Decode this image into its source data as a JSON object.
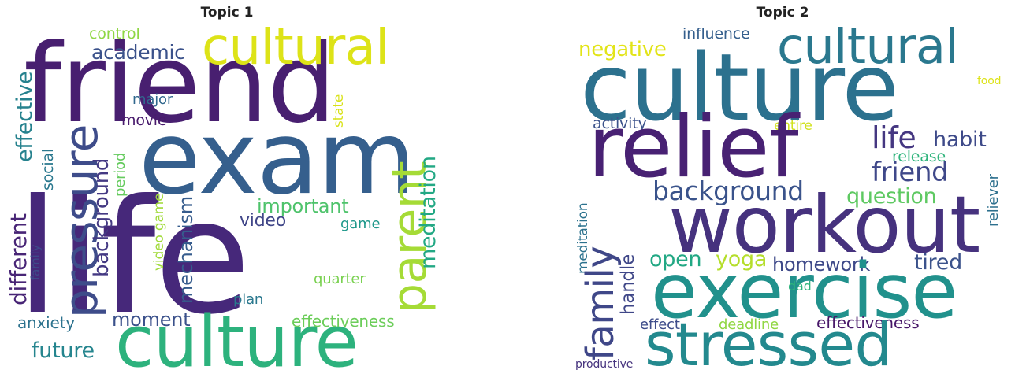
{
  "panels": [
    {
      "title": "Topic 1",
      "words": {
        "friend": {
          "text": "friend",
          "color": "#481f70"
        },
        "exam": {
          "text": "exam",
          "color": "#355f8d"
        },
        "life": {
          "text": "life",
          "color": "#46287a"
        },
        "culture": {
          "text": "culture",
          "color": "#2db27d"
        },
        "cultural": {
          "text": "cultural",
          "color": "#dde318"
        },
        "pressure": {
          "text": "pressure",
          "color": "#3e4c8a"
        },
        "parent": {
          "text": "parent",
          "color": "#a5db36"
        },
        "academic": {
          "text": "academic",
          "color": "#3b528b"
        },
        "control": {
          "text": "control",
          "color": "#8fd744"
        },
        "effective": {
          "text": "effective",
          "color": "#26828e"
        },
        "different": {
          "text": "different",
          "color": "#482576"
        },
        "background": {
          "text": "background",
          "color": "#443983"
        },
        "major": {
          "text": "major",
          "color": "#31688e"
        },
        "movie": {
          "text": "movie",
          "color": "#481a6c"
        },
        "state": {
          "text": "state",
          "color": "#d8e219"
        },
        "social": {
          "text": "social",
          "color": "#2a788e"
        },
        "family": {
          "text": "family",
          "color": "#3e4989"
        },
        "period": {
          "text": "period",
          "color": "#65cb5e"
        },
        "video_game": {
          "text": "video game",
          "color": "#a0da39"
        },
        "mechanism": {
          "text": "mechanism",
          "color": "#365c8d"
        },
        "important": {
          "text": "important",
          "color": "#4ec36b"
        },
        "video": {
          "text": "video",
          "color": "#404688"
        },
        "game": {
          "text": "game",
          "color": "#1f988b"
        },
        "meditation": {
          "text": "meditation",
          "color": "#22a884"
        },
        "anxiety": {
          "text": "anxiety",
          "color": "#2c728e"
        },
        "moment": {
          "text": "moment",
          "color": "#3b518b"
        },
        "future": {
          "text": "future",
          "color": "#25858e"
        },
        "plan": {
          "text": "plan",
          "color": "#2a788e"
        },
        "quarter": {
          "text": "quarter",
          "color": "#7ad151"
        },
        "effectiveness": {
          "text": "effectiveness",
          "color": "#6ccd5a"
        }
      }
    },
    {
      "title": "Topic 2",
      "words": {
        "culture": {
          "text": "culture",
          "color": "#2c718e"
        },
        "cultural": {
          "text": "cultural",
          "color": "#2a788e"
        },
        "relief": {
          "text": "relief",
          "color": "#482173"
        },
        "workout": {
          "text": "workout",
          "color": "#46327e"
        },
        "exercise": {
          "text": "exercise",
          "color": "#21918c"
        },
        "stressed": {
          "text": "stressed",
          "color": "#23898e"
        },
        "family": {
          "text": "family",
          "color": "#3f4788"
        },
        "negative": {
          "text": "negative",
          "color": "#e2e418"
        },
        "influence": {
          "text": "influence",
          "color": "#355f8d"
        },
        "food": {
          "text": "food",
          "color": "#dde318"
        },
        "activity": {
          "text": "activity",
          "color": "#3b528b"
        },
        "entire": {
          "text": "entire",
          "color": "#d0e11c"
        },
        "life": {
          "text": "life",
          "color": "#453781"
        },
        "habit": {
          "text": "habit",
          "color": "#3e4a89"
        },
        "release": {
          "text": "release",
          "color": "#2fb47c"
        },
        "friend": {
          "text": "friend",
          "color": "#3f4889"
        },
        "background": {
          "text": "background",
          "color": "#3a538b"
        },
        "question": {
          "text": "question",
          "color": "#5ec962"
        },
        "reliever": {
          "text": "reliever",
          "color": "#2d708e"
        },
        "meditation": {
          "text": "meditation",
          "color": "#2c728e"
        },
        "handle": {
          "text": "handle",
          "color": "#3f4788"
        },
        "open": {
          "text": "open",
          "color": "#22a884"
        },
        "yoga": {
          "text": "yoga",
          "color": "#b5de2b"
        },
        "homework": {
          "text": "homework",
          "color": "#3e4989"
        },
        "tired": {
          "text": "tired",
          "color": "#3b528b"
        },
        "dad": {
          "text": "dad",
          "color": "#2fb47c"
        },
        "effect": {
          "text": "effect",
          "color": "#3e4c8a"
        },
        "deadline": {
          "text": "deadline",
          "color": "#90d743"
        },
        "effectiveness": {
          "text": "effectiveness",
          "color": "#481769"
        },
        "productive": {
          "text": "productive",
          "color": "#46337e"
        }
      }
    }
  ]
}
